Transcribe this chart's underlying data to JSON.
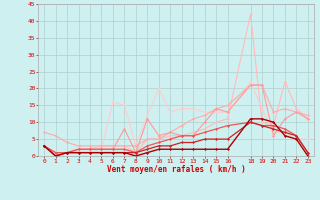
{
  "bg_color": "#cff0f0",
  "grid_color": "#b0d0d0",
  "xlabel": "Vent moyen/en rafales ( km/h )",
  "xlim": [
    -0.5,
    23.5
  ],
  "ylim": [
    0,
    45
  ],
  "yticks": [
    0,
    5,
    10,
    15,
    20,
    25,
    30,
    35,
    40,
    45
  ],
  "xticks": [
    0,
    1,
    2,
    3,
    4,
    5,
    6,
    7,
    8,
    9,
    10,
    11,
    12,
    13,
    14,
    15,
    16,
    18,
    19,
    20,
    21,
    22,
    23
  ],
  "lines": [
    {
      "x": [
        0,
        1,
        2,
        3,
        4,
        5,
        6,
        7,
        8,
        9,
        10,
        11,
        12,
        13,
        14,
        15,
        16,
        18,
        19,
        20,
        21,
        22,
        23
      ],
      "y": [
        3,
        1,
        1,
        2,
        2,
        3,
        3,
        3,
        1,
        5,
        5,
        6,
        6,
        7,
        8,
        10,
        11,
        42,
        10,
        9,
        22,
        14,
        11
      ],
      "color": "#ffbbbb",
      "lw": 0.8,
      "marker": "D",
      "ms": 1.5
    },
    {
      "x": [
        0,
        1,
        2,
        3,
        4,
        5,
        6,
        7,
        8,
        9,
        10,
        11,
        12,
        13,
        14,
        15,
        16,
        18,
        19,
        20,
        21,
        22,
        23
      ],
      "y": [
        3,
        0,
        1,
        2,
        2,
        2,
        16,
        15,
        3,
        12,
        20,
        13,
        14,
        14,
        13,
        13,
        13,
        22,
        14,
        7,
        7,
        5,
        5
      ],
      "color": "#ffcccc",
      "lw": 0.8,
      "marker": "D",
      "ms": 1.5
    },
    {
      "x": [
        0,
        1,
        2,
        3,
        4,
        5,
        6,
        7,
        8,
        9,
        10,
        11,
        12,
        13,
        14,
        15,
        16,
        18,
        19,
        20,
        21,
        22,
        23
      ],
      "y": [
        7,
        6,
        4,
        3,
        3,
        3,
        3,
        3,
        3,
        5,
        5,
        7,
        9,
        11,
        12,
        14,
        15,
        21,
        21,
        13,
        14,
        13,
        12
      ],
      "color": "#ffaaaa",
      "lw": 0.8,
      "marker": "D",
      "ms": 1.5
    },
    {
      "x": [
        0,
        1,
        2,
        3,
        4,
        5,
        6,
        7,
        8,
        9,
        10,
        11,
        12,
        13,
        14,
        15,
        16,
        18,
        19,
        20,
        21,
        22,
        23
      ],
      "y": [
        3,
        1,
        1,
        2,
        2,
        2,
        2,
        8,
        1,
        11,
        6,
        7,
        6,
        6,
        10,
        14,
        13,
        21,
        21,
        6,
        11,
        13,
        11
      ],
      "color": "#ff9999",
      "lw": 0.8,
      "marker": "D",
      "ms": 1.5
    },
    {
      "x": [
        0,
        1,
        2,
        3,
        4,
        5,
        6,
        7,
        8,
        9,
        10,
        11,
        12,
        13,
        14,
        15,
        16,
        18,
        19,
        20,
        21,
        22,
        23
      ],
      "y": [
        3,
        1,
        1,
        2,
        2,
        2,
        2,
        2,
        1,
        3,
        4,
        5,
        6,
        6,
        7,
        8,
        9,
        10,
        9,
        9,
        8,
        6,
        1
      ],
      "color": "#ee5555",
      "lw": 0.9,
      "marker": "D",
      "ms": 1.5
    },
    {
      "x": [
        0,
        1,
        2,
        3,
        4,
        5,
        6,
        7,
        8,
        9,
        10,
        11,
        12,
        13,
        14,
        15,
        16,
        18,
        19,
        20,
        21,
        22,
        23
      ],
      "y": [
        3,
        0,
        1,
        1,
        1,
        1,
        1,
        1,
        1,
        2,
        3,
        3,
        4,
        4,
        5,
        5,
        5,
        10,
        9,
        8,
        7,
        6,
        1
      ],
      "color": "#cc2222",
      "lw": 0.9,
      "marker": "D",
      "ms": 1.5
    },
    {
      "x": [
        0,
        1,
        2,
        3,
        4,
        5,
        6,
        7,
        8,
        9,
        10,
        11,
        12,
        13,
        14,
        15,
        16,
        18,
        19,
        20,
        21,
        22,
        23
      ],
      "y": [
        3,
        0,
        1,
        1,
        1,
        1,
        1,
        1,
        0,
        1,
        2,
        2,
        2,
        2,
        2,
        2,
        2,
        11,
        11,
        10,
        6,
        5,
        0
      ],
      "color": "#aa0000",
      "lw": 1.0,
      "marker": "D",
      "ms": 1.5
    }
  ]
}
